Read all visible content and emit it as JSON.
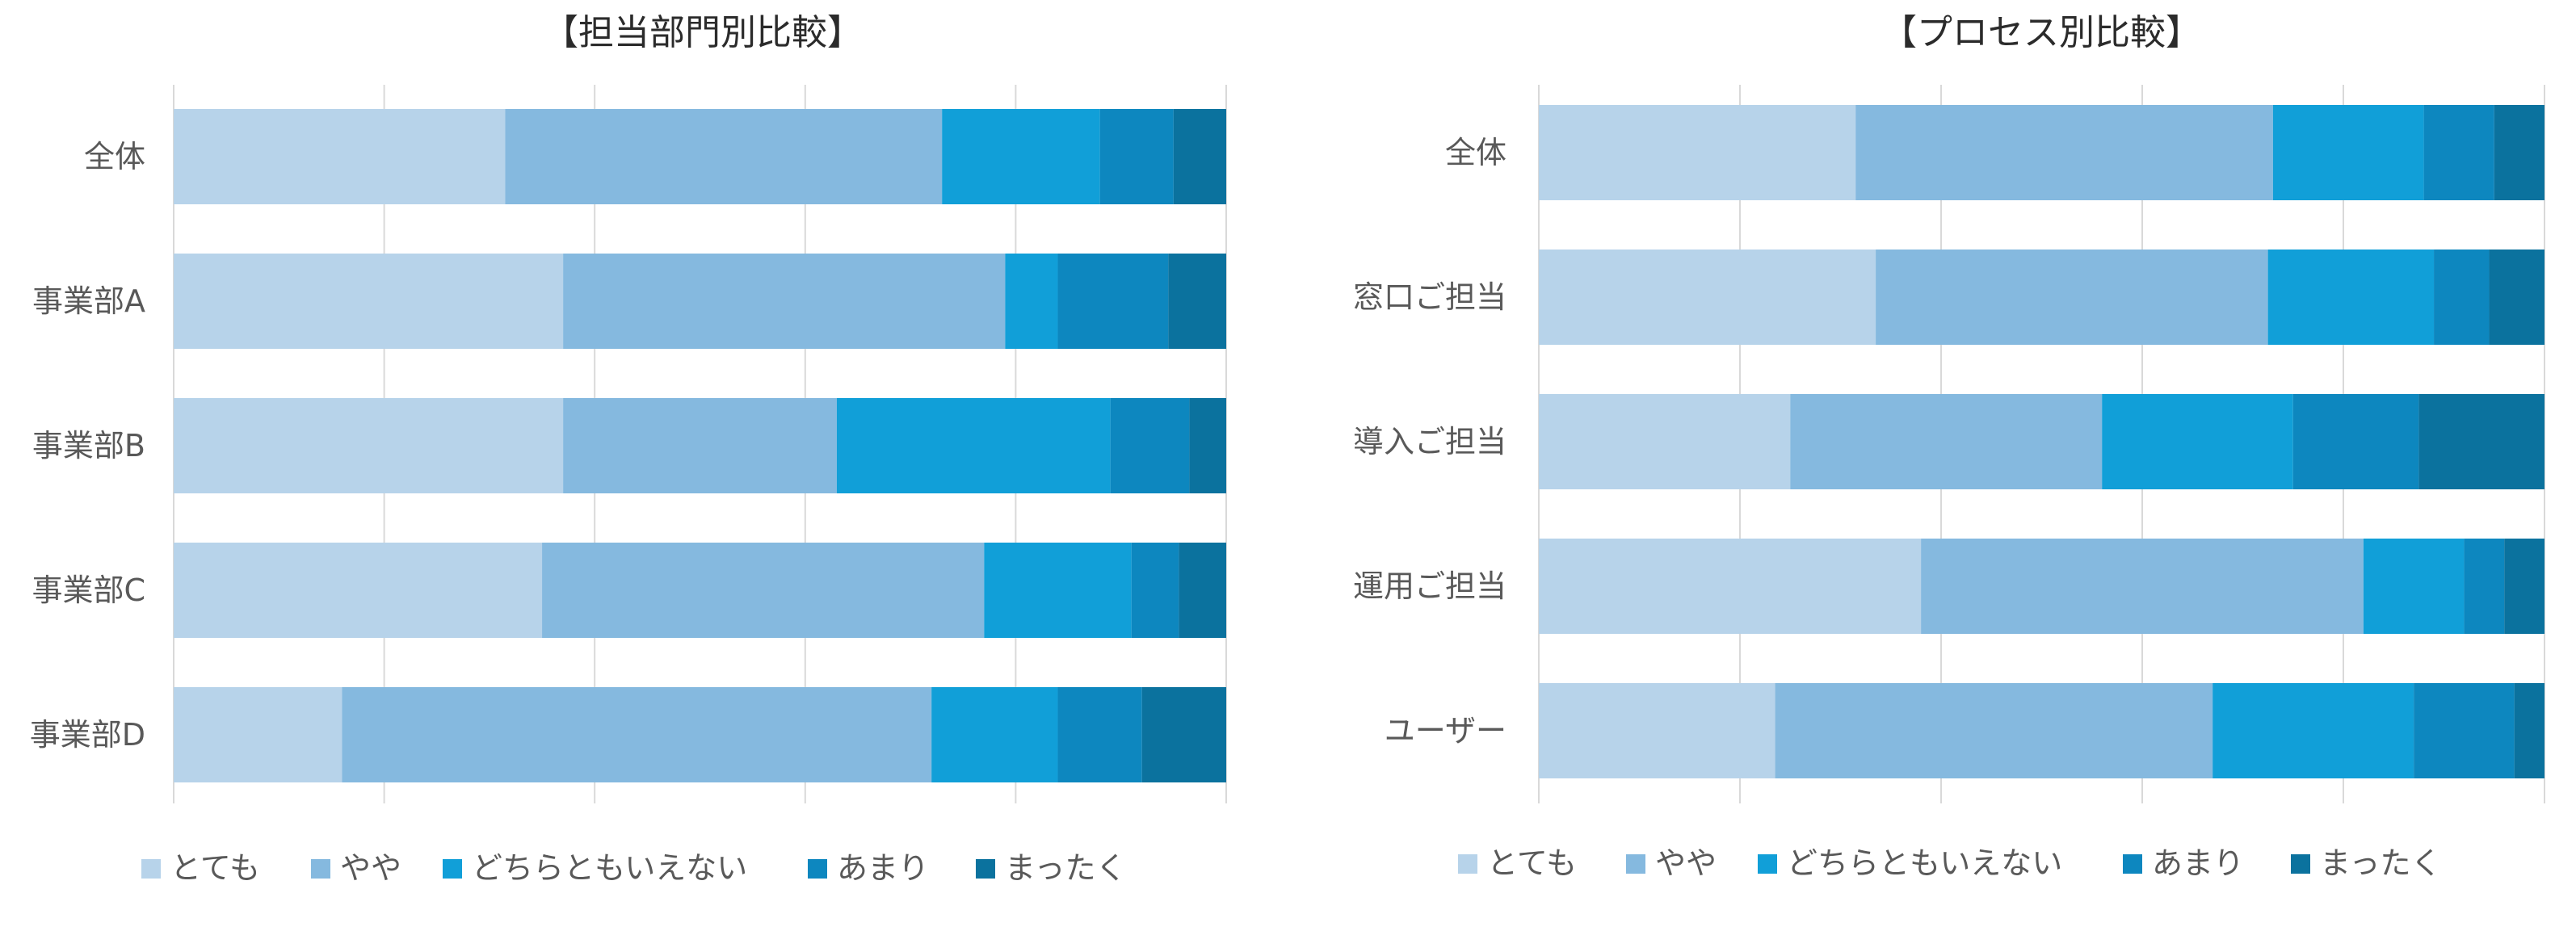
{
  "chart_data": [
    {
      "type": "bar",
      "orientation": "horizontal",
      "stacked": "percent",
      "title": "【担当部門別比較】",
      "categories": [
        "全体",
        "事業部A",
        "事業部B",
        "事業部C",
        "事業部D"
      ],
      "series": [
        {
          "name": "とても",
          "color": "#b7d3ea",
          "values": [
            31.5,
            37,
            37,
            35,
            16
          ]
        },
        {
          "name": "やや",
          "color": "#85b9df",
          "values": [
            41.5,
            42,
            26,
            42,
            56
          ]
        },
        {
          "name": "どちらともいえない",
          "color": "#119fd8",
          "values": [
            15,
            5,
            26,
            14,
            12
          ]
        },
        {
          "name": "あまり",
          "color": "#0d87bf",
          "values": [
            7,
            10.5,
            7.5,
            4.5,
            8
          ]
        },
        {
          "name": "まったく",
          "color": "#0b729e",
          "values": [
            5,
            5.5,
            3.5,
            4.5,
            8
          ]
        }
      ],
      "xlim": [
        0,
        100
      ],
      "grid": true,
      "legend": "bottom"
    },
    {
      "type": "bar",
      "orientation": "horizontal",
      "stacked": "percent",
      "title": "【プロセス別比較】",
      "categories": [
        "全体",
        "窓口ご担当",
        "導入ご担当",
        "運用ご担当",
        "ユーザー"
      ],
      "series": [
        {
          "name": "とても",
          "color": "#b7d3ea",
          "values": [
            31.5,
            33.5,
            25,
            38,
            23.5
          ]
        },
        {
          "name": "やや",
          "color": "#85b9df",
          "values": [
            41.5,
            39,
            31,
            44,
            43.5
          ]
        },
        {
          "name": "どちらともいえない",
          "color": "#119fd8",
          "values": [
            15,
            16.5,
            19,
            10,
            20
          ]
        },
        {
          "name": "あまり",
          "color": "#0d87bf",
          "values": [
            7,
            5.5,
            12.5,
            4,
            10
          ]
        },
        {
          "name": "まったく",
          "color": "#0b729e",
          "values": [
            5,
            5.5,
            12.5,
            4,
            3
          ]
        }
      ],
      "xlim": [
        0,
        100
      ],
      "grid": true,
      "legend": "bottom"
    }
  ]
}
